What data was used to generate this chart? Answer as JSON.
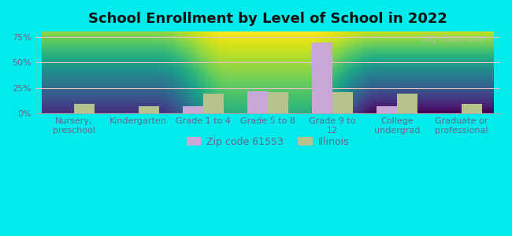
{
  "title": "School Enrollment by Level of School in 2022",
  "categories": [
    "Nursery,\npreschool",
    "Kindergarten",
    "Grade 1 to 4",
    "Grade 5 to 8",
    "Grade 9 to\n12",
    "College\nundergrad",
    "Graduate or\nprofessional"
  ],
  "zip_values": [
    0,
    0,
    7,
    22,
    69,
    7,
    0
  ],
  "il_values": [
    9,
    7,
    19,
    21,
    21,
    19,
    9
  ],
  "zip_color": "#c9a8d8",
  "il_color": "#b5c48a",
  "bg_color": "#00ecec",
  "plot_bg_top": "#f5fffa",
  "plot_bg_bottom": "#c8e8c0",
  "grid_color": "#e8c0c0",
  "yticks": [
    0,
    25,
    50,
    75
  ],
  "ylim": [
    0,
    80
  ],
  "legend_zip_label": "Zip code 61553",
  "legend_il_label": "Illinois",
  "title_fontsize": 13,
  "tick_fontsize": 8,
  "legend_fontsize": 9,
  "bar_width": 0.32,
  "watermark": "City-Data.com",
  "tick_color": "#666688",
  "title_color": "#111111"
}
